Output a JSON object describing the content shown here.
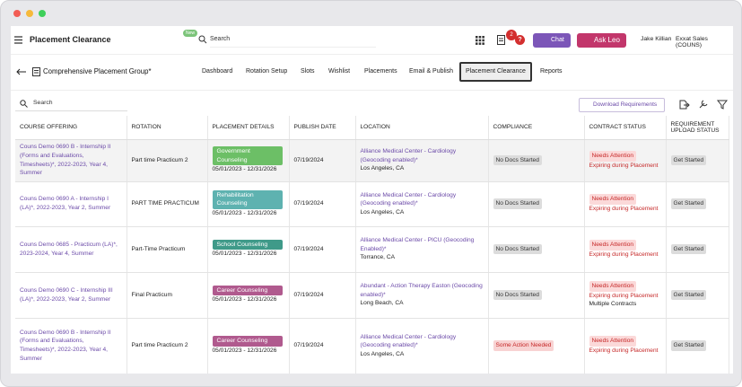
{
  "header": {
    "title": "Placement Clearance",
    "badge": "New",
    "search": "Search",
    "notifications": "2",
    "chat": "Chat",
    "ask": "Ask Leo",
    "user": "Jake Killian",
    "org": "Exxat Sales (COUNS)"
  },
  "subheader": {
    "title": "Comprehensive Placement Group*",
    "tabs": [
      "Dashboard",
      "Rotation Setup",
      "Slots",
      "Wishlist",
      "Placements",
      "Email & Publish",
      "Placement Clearance",
      "Reports"
    ],
    "active_tab": 6
  },
  "toolbar": {
    "search": "Search",
    "button": "Download Requirements"
  },
  "table": {
    "columns": [
      "COURSE OFFERING",
      "ROTATION",
      "PLACEMENT DETAILS",
      "PUBLISH DATE",
      "LOCATION",
      "COMPLIANCE",
      "CONTRACT STATUS",
      "REQUIREMENT UPLOAD STATUS"
    ],
    "highlighted_row": 0,
    "rows": [
      {
        "course": "Couns Demo 0690 B - Internship II (Forms and Evaluations, Timesheets)*, 2022-2023, Year 4, Summer",
        "rotation": "Part time Practicum 2",
        "detail": {
          "label": "Government Counseling",
          "color": "#6cbf66"
        },
        "dates": "05/01/2023 - 12/31/2026",
        "publish": "07/19/2024",
        "location": {
          "name": "Alliance Medical Center - Cardiology (Geocoding enabled)*",
          "city": "Los Angeles, CA"
        },
        "compliance": {
          "label": "No Docs Started",
          "color": "#dcdcdc"
        },
        "contract": [
          "Needs Attention",
          "Expiring during Placement"
        ],
        "upload": "Get Started"
      },
      {
        "course": "Couns Demo 0690 A - Internship I (LA)*, 2022-2023, Year 2, Summer",
        "rotation": "PART TIME PRACTICUM",
        "detail": {
          "label": "Rehabilitation Counseling",
          "color": "#5eb2b0"
        },
        "dates": "05/01/2023 - 12/31/2026",
        "publish": "07/19/2024",
        "location": {
          "name": "Alliance Medical Center - Cardiology (Geocoding enabled)*",
          "city": "Los Angeles, CA"
        },
        "compliance": {
          "label": "No Docs Started",
          "color": "#dcdcdc"
        },
        "contract": [
          "Needs Attention",
          "Expiring during Placement"
        ],
        "upload": "Get Started"
      },
      {
        "course": "Couns Demo 0685 - Practicum (LA)*, 2023-2024, Year 4, Summer",
        "rotation": "Part-Time Practicum",
        "detail": {
          "label": "School Counseling",
          "color": "#3f9a89"
        },
        "dates": "05/01/2023 - 12/31/2026",
        "publish": "07/19/2024",
        "location": {
          "name": "Alliance Medical Center - PICU (Geocoding Enabled)*",
          "city": "Torrance, CA"
        },
        "compliance": {
          "label": "No Docs Started",
          "color": "#dcdcdc"
        },
        "contract": [
          "Needs Attention",
          "Expiring during Placement"
        ],
        "upload": "Get Started"
      },
      {
        "course": "Couns Demo 0690 C - Internship III (LA)*, 2022-2023, Year 2, Summer",
        "rotation": "Final Practicum",
        "detail": {
          "label": "Career Counseling",
          "color": "#b05a8e"
        },
        "dates": "05/01/2023 - 12/31/2026",
        "publish": "07/19/2024",
        "location": {
          "name": "Abundant - Action Therapy Easton (Geocoding enabled)*",
          "city": "Long Beach, CA"
        },
        "compliance": {
          "label": "No Docs Started",
          "color": "#dcdcdc"
        },
        "contract": [
          "Needs Attention",
          "Expiring during Placement",
          "Multiple Contracts"
        ],
        "upload": "Get Started"
      },
      {
        "course": "Couns Demo 0690 B - Internship II (Forms and Evaluations, Timesheets)*, 2022-2023, Year 4, Summer",
        "rotation": "Part time Practicum 2",
        "detail": {
          "label": "Career Counseling",
          "color": "#b05a8e"
        },
        "dates": "05/01/2023 - 12/31/2026",
        "publish": "07/19/2024",
        "location": {
          "name": "Alliance Medical Center - Cardiology (Geocoding enabled)*",
          "city": "Los Angeles, CA"
        },
        "compliance": {
          "label": "Some Action Needed",
          "color": "#f8d3d3"
        },
        "contract": [
          "Needs Attention",
          "Expiring during Placement"
        ],
        "upload": "Get Started"
      }
    ]
  }
}
